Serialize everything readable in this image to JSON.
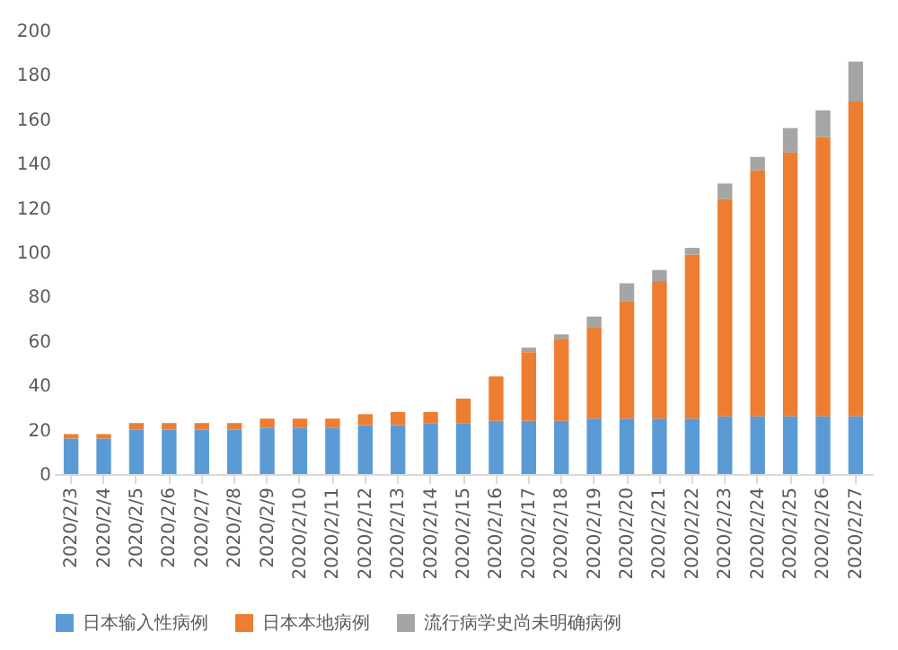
{
  "chart_data": {
    "type": "bar",
    "stacked": true,
    "categories": [
      "2020/2/3",
      "2020/2/4",
      "2020/2/5",
      "2020/2/6",
      "2020/2/7",
      "2020/2/8",
      "2020/2/9",
      "2020/2/10",
      "2020/2/11",
      "2020/2/12",
      "2020/2/13",
      "2020/2/14",
      "2020/2/15",
      "2020/2/16",
      "2020/2/17",
      "2020/2/18",
      "2020/2/19",
      "2020/2/20",
      "2020/2/21",
      "2020/2/22",
      "2020/2/23",
      "2020/2/24",
      "2020/2/25",
      "2020/2/26",
      "2020/2/27"
    ],
    "series": [
      {
        "name": "日本输入性病例",
        "color": "#5b9bd5",
        "values": [
          16,
          16,
          20,
          20,
          20,
          20,
          21,
          21,
          21,
          22,
          22,
          23,
          23,
          24,
          24,
          24,
          25,
          25,
          25,
          25,
          26,
          26,
          26,
          26,
          26
        ]
      },
      {
        "name": "日本本地病例",
        "color": "#ed7d31",
        "values": [
          2,
          2,
          3,
          3,
          3,
          3,
          4,
          4,
          4,
          5,
          6,
          5,
          11,
          20,
          31,
          37,
          41,
          53,
          62,
          74,
          98,
          111,
          119,
          126,
          142
        ]
      },
      {
        "name": "流行病学史尚未明确病例",
        "color": "#a5a5a5",
        "values": [
          0,
          0,
          0,
          0,
          0,
          0,
          0,
          0,
          0,
          0,
          0,
          0,
          0,
          0,
          2,
          2,
          5,
          8,
          5,
          3,
          7,
          6,
          11,
          12,
          18
        ]
      }
    ],
    "ylim": [
      0,
      200
    ],
    "yticks": [
      0,
      20,
      40,
      60,
      80,
      100,
      120,
      140,
      160,
      180,
      200
    ],
    "grid": false,
    "legend": "bottom"
  }
}
